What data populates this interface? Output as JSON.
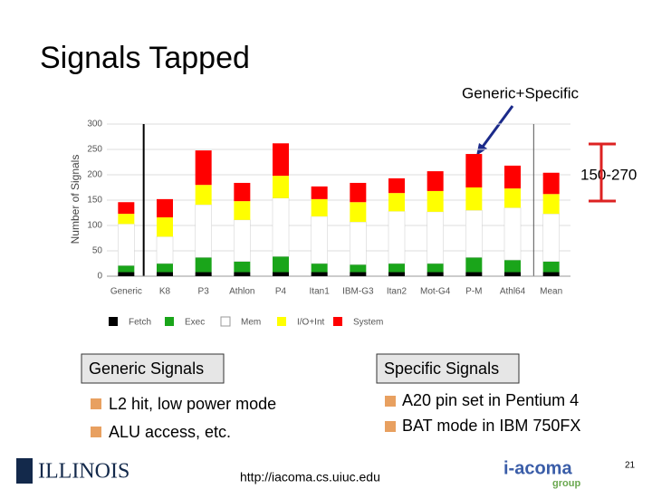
{
  "slide": {
    "title": "Signals Tapped",
    "generic_box": "Generic Signals",
    "specific_box": "Specific Signals",
    "generic_bullets": [
      "L2 hit, low power mode",
      "ALU access, etc."
    ],
    "specific_bullets": [
      "A20 pin set in Pentium 4",
      "BAT mode in IBM 750FX"
    ],
    "url": "http://iacoma.cs.uiuc.edu",
    "page_number": "21",
    "logo_left": "ILLINOIS",
    "logo_right": "i-acoma",
    "logo_right_sub": "group"
  },
  "chart_data": {
    "type": "bar",
    "stacked": true,
    "y_label": "Number of Signals",
    "annotations": [
      "Generic+Specific",
      "150-270"
    ],
    "categories": [
      "Generic",
      "K8",
      "P3",
      "Athlon",
      "P4",
      "Itan1",
      "IBM-G3",
      "Itan2",
      "Mot-G4",
      "P-M",
      "Athl64",
      "Mean"
    ],
    "series": [
      {
        "name": "Fetch",
        "color": "#000000",
        "values": [
          8,
          8,
          8,
          8,
          8,
          8,
          8,
          8,
          8,
          8,
          8,
          8
        ]
      },
      {
        "name": "Exec",
        "color": "#1aa51a",
        "values": [
          13,
          17,
          29,
          21,
          31,
          17,
          15,
          17,
          17,
          29,
          24,
          21
        ]
      },
      {
        "name": "Mem",
        "color": "#ffffff",
        "values": [
          82,
          53,
          104,
          82,
          115,
          93,
          84,
          103,
          102,
          93,
          103,
          94
        ]
      },
      {
        "name": "I/O+Int",
        "color": "#ffff00",
        "values": [
          20,
          38,
          39,
          37,
          44,
          34,
          39,
          36,
          41,
          45,
          38,
          39
        ]
      },
      {
        "name": "System",
        "color": "#ff0000",
        "values": [
          23,
          36,
          68,
          36,
          64,
          25,
          38,
          29,
          39,
          66,
          45,
          42
        ]
      }
    ],
    "ylim": [
      0,
      300
    ],
    "yticks": [
      0,
      50,
      100,
      150,
      200,
      250,
      300
    ],
    "grid": true
  }
}
